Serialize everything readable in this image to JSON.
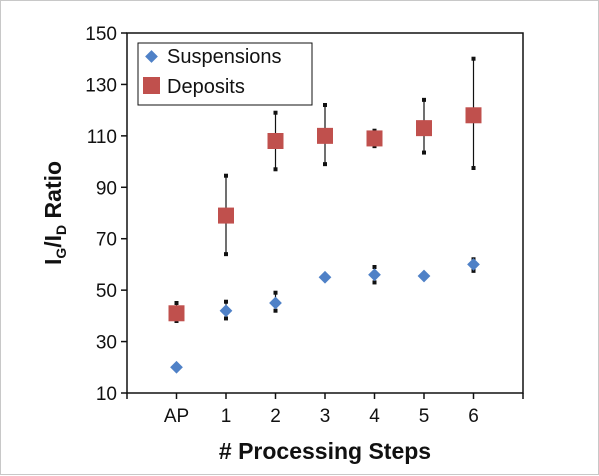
{
  "chart_data": {
    "type": "scatter",
    "xlabel": "# Processing Steps",
    "ylabel": {
      "main": "I",
      "sub_g": "G",
      "slash": "/I",
      "sub_d": "D",
      "suffix": " Ratio"
    },
    "categories": [
      "AP",
      "1",
      "2",
      "3",
      "4",
      "5",
      "6"
    ],
    "ylim": [
      10,
      150
    ],
    "yticks": [
      10,
      30,
      50,
      70,
      90,
      110,
      130,
      150
    ],
    "grid": false,
    "legend_position": "top-left",
    "series": [
      {
        "name": "Suspensions",
        "marker": "diamond",
        "color": "#4f81c7",
        "values": [
          20,
          42,
          45,
          55,
          56,
          55.5,
          60
        ],
        "err_low": [
          null,
          39,
          42,
          null,
          53,
          null,
          57.5
        ],
        "err_high": [
          null,
          45.5,
          49,
          null,
          59,
          null,
          62
        ]
      },
      {
        "name": "Deposits",
        "marker": "square",
        "color": "#c0504d",
        "values": [
          41,
          79,
          108,
          110,
          109,
          113,
          118
        ],
        "err_low": [
          38,
          64,
          97,
          99,
          106,
          103.5,
          97.5
        ],
        "err_high": [
          45,
          94.5,
          119,
          122,
          112,
          124,
          140
        ]
      }
    ]
  }
}
